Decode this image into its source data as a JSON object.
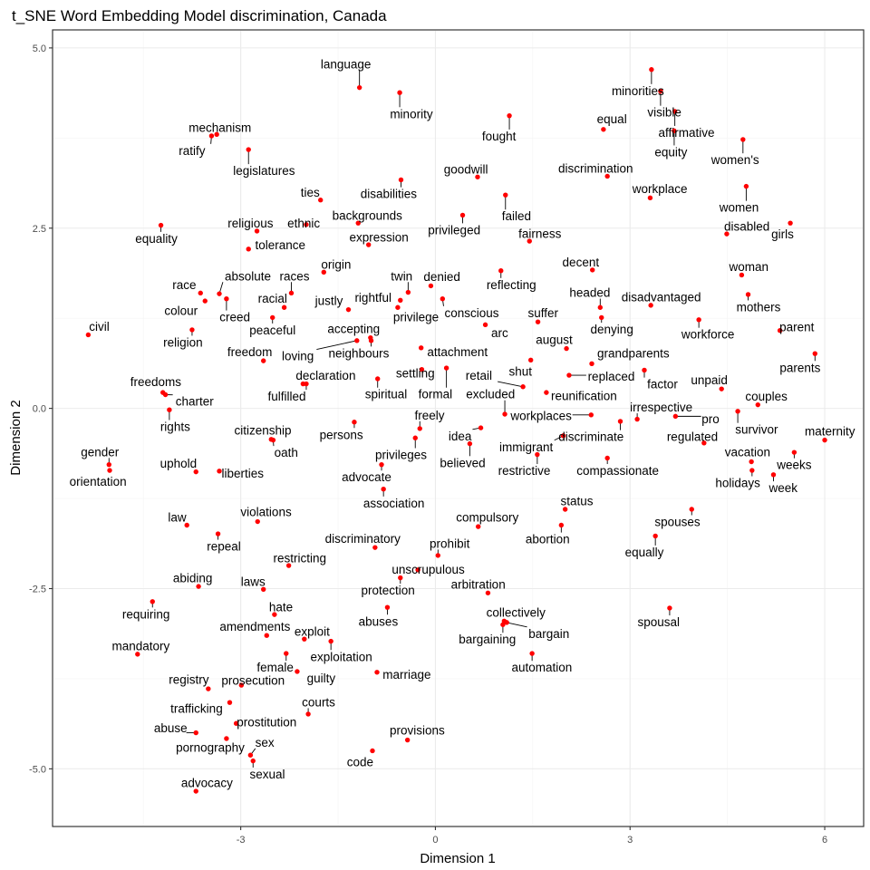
{
  "chart_data": {
    "type": "scatter",
    "title": "t_SNE Word Embedding Model discrimination, Canada",
    "xlabel": "Dimension 1",
    "ylabel": "Dimension 2",
    "xlim": [
      -5.9,
      6.6
    ],
    "ylim": [
      -5.8,
      5.25
    ],
    "xticks": [
      -3,
      0,
      3,
      6
    ],
    "yticks": [
      -5.0,
      -2.5,
      0.0,
      2.5,
      5.0
    ],
    "xtick_labels": [
      "-3",
      "0",
      "3",
      "6"
    ],
    "ytick_labels": [
      "-5.0",
      "-2.5",
      "0.0",
      "2.5",
      "5.0"
    ],
    "grid": true,
    "point_color": "#ff0000",
    "points": [
      {
        "word": "language",
        "x": -1.17,
        "y": 4.45,
        "lx": -1.38,
        "ly": 4.78
      },
      {
        "word": "minority",
        "x": -0.55,
        "y": 4.38,
        "lx": -0.37,
        "ly": 4.09
      },
      {
        "word": "minorities",
        "x": 3.33,
        "y": 4.7,
        "lx": 3.12,
        "ly": 4.41
      },
      {
        "word": "visible",
        "x": 3.47,
        "y": 4.4,
        "lx": 3.53,
        "ly": 4.11
      },
      {
        "word": "fought",
        "x": 1.14,
        "y": 4.06,
        "lx": 0.98,
        "ly": 3.78
      },
      {
        "word": "equal",
        "x": 2.59,
        "y": 3.87,
        "lx": 2.72,
        "ly": 4.02
      },
      {
        "word": "affirmative",
        "x": 3.69,
        "y": 4.12,
        "lx": 3.87,
        "ly": 3.83
      },
      {
        "word": "equity",
        "x": 3.68,
        "y": 3.85,
        "lx": 3.63,
        "ly": 3.56
      },
      {
        "word": "women's",
        "x": 4.74,
        "y": 3.73,
        "lx": 4.62,
        "ly": 3.45
      },
      {
        "word": "mechanism",
        "x": -3.37,
        "y": 3.8,
        "lx": -3.32,
        "ly": 3.9
      },
      {
        "word": "ratify",
        "x": -3.45,
        "y": 3.78,
        "lx": -3.75,
        "ly": 3.58
      },
      {
        "word": "legislatures",
        "x": -2.88,
        "y": 3.59,
        "lx": -2.64,
        "ly": 3.3
      },
      {
        "word": "goodwill",
        "x": 0.65,
        "y": 3.21,
        "lx": 0.47,
        "ly": 3.32
      },
      {
        "word": "discrimination",
        "x": 2.65,
        "y": 3.22,
        "lx": 2.47,
        "ly": 3.33
      },
      {
        "word": "workplace",
        "x": 3.31,
        "y": 2.92,
        "lx": 3.46,
        "ly": 3.05
      },
      {
        "word": "women",
        "x": 4.79,
        "y": 3.08,
        "lx": 4.68,
        "ly": 2.79
      },
      {
        "word": "ties",
        "x": -1.77,
        "y": 2.89,
        "lx": -1.93,
        "ly": 3.0
      },
      {
        "word": "disabilities",
        "x": -0.53,
        "y": 3.17,
        "lx": -0.72,
        "ly": 2.98
      },
      {
        "word": "failed",
        "x": 1.08,
        "y": 2.96,
        "lx": 1.25,
        "ly": 2.67
      },
      {
        "word": "backgrounds",
        "x": -1.19,
        "y": 2.57,
        "lx": -1.05,
        "ly": 2.68
      },
      {
        "word": "religious",
        "x": -2.75,
        "y": 2.46,
        "lx": -2.85,
        "ly": 2.57
      },
      {
        "word": "ethnic",
        "x": -1.99,
        "y": 2.55,
        "lx": -2.03,
        "ly": 2.57
      },
      {
        "word": "privileged",
        "x": 0.42,
        "y": 2.68,
        "lx": 0.29,
        "ly": 2.48
      },
      {
        "word": "fairness",
        "x": 1.45,
        "y": 2.32,
        "lx": 1.61,
        "ly": 2.43
      },
      {
        "word": "disabled",
        "x": 4.49,
        "y": 2.42,
        "lx": 4.8,
        "ly": 2.53
      },
      {
        "word": "girls",
        "x": 5.47,
        "y": 2.57,
        "lx": 5.35,
        "ly": 2.42
      },
      {
        "word": "equality",
        "x": -4.23,
        "y": 2.54,
        "lx": -4.3,
        "ly": 2.36
      },
      {
        "word": "expression",
        "x": -1.03,
        "y": 2.27,
        "lx": -0.87,
        "ly": 2.38
      },
      {
        "word": "tolerance",
        "x": -2.88,
        "y": 2.21,
        "lx": -2.39,
        "ly": 2.27
      },
      {
        "word": "origin",
        "x": -1.72,
        "y": 1.89,
        "lx": -1.53,
        "ly": 2.0
      },
      {
        "word": "reflecting",
        "x": 1.01,
        "y": 1.91,
        "lx": 1.17,
        "ly": 1.72
      },
      {
        "word": "decent",
        "x": 2.42,
        "y": 1.92,
        "lx": 2.24,
        "ly": 2.03
      },
      {
        "word": "woman",
        "x": 4.72,
        "y": 1.85,
        "lx": 4.83,
        "ly": 1.97
      },
      {
        "word": "races",
        "x": -2.22,
        "y": 1.6,
        "lx": -2.17,
        "ly": 1.84
      },
      {
        "word": "absolute",
        "x": -3.33,
        "y": 1.59,
        "lx": -2.89,
        "ly": 1.84
      },
      {
        "word": "race",
        "x": -3.62,
        "y": 1.6,
        "lx": -3.87,
        "ly": 1.72
      },
      {
        "word": "twin",
        "x": -0.42,
        "y": 1.61,
        "lx": -0.52,
        "ly": 1.84
      },
      {
        "word": "denied",
        "x": -0.07,
        "y": 1.7,
        "lx": 0.1,
        "ly": 1.83
      },
      {
        "word": "headed",
        "x": 2.54,
        "y": 1.4,
        "lx": 2.38,
        "ly": 1.61
      },
      {
        "word": "mothers",
        "x": 4.82,
        "y": 1.58,
        "lx": 4.98,
        "ly": 1.41
      },
      {
        "word": "racial",
        "x": -2.33,
        "y": 1.4,
        "lx": -2.51,
        "ly": 1.53
      },
      {
        "word": "justly",
        "x": -1.34,
        "y": 1.37,
        "lx": -1.64,
        "ly": 1.5
      },
      {
        "word": "rightful",
        "x": -0.54,
        "y": 1.5,
        "lx": -0.96,
        "ly": 1.54
      },
      {
        "word": "conscious",
        "x": 0.11,
        "y": 1.52,
        "lx": 0.56,
        "ly": 1.33
      },
      {
        "word": "disadvantaged",
        "x": 3.32,
        "y": 1.43,
        "lx": 3.48,
        "ly": 1.55
      },
      {
        "word": "colour",
        "x": -3.55,
        "y": 1.49,
        "lx": -3.92,
        "ly": 1.36
      },
      {
        "word": "creed",
        "x": -3.22,
        "y": 1.52,
        "lx": -3.09,
        "ly": 1.27
      },
      {
        "word": "peaceful",
        "x": -2.51,
        "y": 1.26,
        "lx": -2.51,
        "ly": 1.09
      },
      {
        "word": "privilege",
        "x": -0.58,
        "y": 1.4,
        "lx": -0.3,
        "ly": 1.27
      },
      {
        "word": "suffer",
        "x": 1.58,
        "y": 1.2,
        "lx": 1.66,
        "ly": 1.33
      },
      {
        "word": "denying",
        "x": 2.56,
        "y": 1.26,
        "lx": 2.72,
        "ly": 1.1
      },
      {
        "word": "civil",
        "x": -5.35,
        "y": 1.02,
        "lx": -5.18,
        "ly": 1.14
      },
      {
        "word": "religion",
        "x": -3.75,
        "y": 1.09,
        "lx": -3.89,
        "ly": 0.92
      },
      {
        "word": "accepting",
        "x": -1.0,
        "y": 0.98,
        "lx": -1.26,
        "ly": 1.11
      },
      {
        "word": "arc",
        "x": 0.77,
        "y": 1.16,
        "lx": 0.99,
        "ly": 1.05
      },
      {
        "word": "workforce",
        "x": 4.06,
        "y": 1.23,
        "lx": 4.2,
        "ly": 1.03
      },
      {
        "word": "parent",
        "x": 5.31,
        "y": 1.08,
        "lx": 5.57,
        "ly": 1.13
      },
      {
        "word": "august",
        "x": 2.02,
        "y": 0.83,
        "lx": 1.83,
        "ly": 0.96
      },
      {
        "word": "loving",
        "x": -1.21,
        "y": 0.94,
        "lx": -2.12,
        "ly": 0.73
      },
      {
        "word": "neighbours",
        "x": -0.99,
        "y": 0.94,
        "lx": -1.18,
        "ly": 0.77
      },
      {
        "word": "freedom",
        "x": -2.65,
        "y": 0.66,
        "lx": -2.86,
        "ly": 0.79
      },
      {
        "word": "attachment",
        "x": -0.22,
        "y": 0.84,
        "lx": 0.34,
        "ly": 0.79
      },
      {
        "word": "grandparents",
        "x": 2.41,
        "y": 0.62,
        "lx": 3.05,
        "ly": 0.77
      },
      {
        "word": "parents",
        "x": 5.85,
        "y": 0.76,
        "lx": 5.62,
        "ly": 0.57
      },
      {
        "word": "shut",
        "x": 1.47,
        "y": 0.67,
        "lx": 1.31,
        "ly": 0.52
      },
      {
        "word": "settling",
        "x": -0.21,
        "y": 0.54,
        "lx": -0.31,
        "ly": 0.49
      },
      {
        "word": "declaration",
        "x": -2.04,
        "y": 0.34,
        "lx": -1.69,
        "ly": 0.46
      },
      {
        "word": "retail",
        "x": 1.35,
        "y": 0.3,
        "lx": 0.67,
        "ly": 0.46
      },
      {
        "word": "replaced",
        "x": 2.06,
        "y": 0.46,
        "lx": 2.71,
        "ly": 0.45
      },
      {
        "word": "factor",
        "x": 3.22,
        "y": 0.53,
        "lx": 3.5,
        "ly": 0.34
      },
      {
        "word": "unpaid",
        "x": 4.41,
        "y": 0.27,
        "lx": 4.22,
        "ly": 0.4
      },
      {
        "word": "freedoms",
        "x": -4.2,
        "y": 0.22,
        "lx": -4.31,
        "ly": 0.37
      },
      {
        "word": "fulfilled",
        "x": -1.99,
        "y": 0.34,
        "lx": -2.29,
        "ly": 0.17
      },
      {
        "word": "spiritual",
        "x": -0.89,
        "y": 0.41,
        "lx": -0.76,
        "ly": 0.2
      },
      {
        "word": "formal",
        "x": 0.17,
        "y": 0.56,
        "lx": 0.0,
        "ly": 0.2
      },
      {
        "word": "excluded",
        "x": 1.07,
        "y": -0.08,
        "lx": 0.85,
        "ly": 0.2
      },
      {
        "word": "reunification",
        "x": 1.71,
        "y": 0.22,
        "lx": 2.29,
        "ly": 0.18
      },
      {
        "word": "couples",
        "x": 4.97,
        "y": 0.05,
        "lx": 5.1,
        "ly": 0.17
      },
      {
        "word": "charter",
        "x": -4.16,
        "y": 0.19,
        "lx": -3.71,
        "ly": 0.1
      },
      {
        "word": "irrespective",
        "x": 3.11,
        "y": -0.15,
        "lx": 3.48,
        "ly": 0.02
      },
      {
        "word": "rights",
        "x": -4.1,
        "y": -0.02,
        "lx": -4.01,
        "ly": -0.25
      },
      {
        "word": "freely",
        "x": -0.24,
        "y": -0.28,
        "lx": -0.09,
        "ly": -0.09
      },
      {
        "word": "workplaces",
        "x": 2.4,
        "y": -0.09,
        "lx": 1.63,
        "ly": -0.1
      },
      {
        "word": "pro",
        "x": 3.7,
        "y": -0.11,
        "lx": 4.24,
        "ly": -0.14
      },
      {
        "word": "survivor",
        "x": 4.66,
        "y": -0.04,
        "lx": 4.95,
        "ly": -0.29
      },
      {
        "word": "maternity",
        "x": 6.0,
        "y": -0.44,
        "lx": 6.08,
        "ly": -0.31
      },
      {
        "word": "citizenship",
        "x": -2.53,
        "y": -0.43,
        "lx": -2.66,
        "ly": -0.3
      },
      {
        "word": "persons",
        "x": -1.25,
        "y": -0.19,
        "lx": -1.45,
        "ly": -0.36
      },
      {
        "word": "idea",
        "x": 0.7,
        "y": -0.27,
        "lx": 0.38,
        "ly": -0.38
      },
      {
        "word": "discriminate",
        "x": 2.85,
        "y": -0.18,
        "lx": 2.4,
        "ly": -0.39
      },
      {
        "word": "regulated",
        "x": 4.14,
        "y": -0.48,
        "lx": 3.96,
        "ly": -0.39
      },
      {
        "word": "immigrant",
        "x": 1.97,
        "y": -0.38,
        "lx": 1.4,
        "ly": -0.53
      },
      {
        "word": "privileges",
        "x": -0.31,
        "y": -0.41,
        "lx": -0.53,
        "ly": -0.64
      },
      {
        "word": "gender",
        "x": -5.03,
        "y": -0.78,
        "lx": -5.17,
        "ly": -0.6
      },
      {
        "word": "oath",
        "x": -2.5,
        "y": -0.44,
        "lx": -2.3,
        "ly": -0.61
      },
      {
        "word": "vacation",
        "x": 4.87,
        "y": -0.74,
        "lx": 4.81,
        "ly": -0.6
      },
      {
        "word": "uphold",
        "x": -3.69,
        "y": -0.88,
        "lx": -3.96,
        "ly": -0.76
      },
      {
        "word": "believed",
        "x": 0.53,
        "y": -0.49,
        "lx": 0.42,
        "ly": -0.75
      },
      {
        "word": "weeks",
        "x": 5.53,
        "y": -0.61,
        "lx": 5.53,
        "ly": -0.78
      },
      {
        "word": "orientation",
        "x": -5.02,
        "y": -0.86,
        "lx": -5.2,
        "ly": -1.01
      },
      {
        "word": "liberties",
        "x": -3.33,
        "y": -0.87,
        "lx": -2.97,
        "ly": -0.9
      },
      {
        "word": "advocate",
        "x": -0.83,
        "y": -0.78,
        "lx": -1.06,
        "ly": -0.95
      },
      {
        "word": "restrictive",
        "x": 1.57,
        "y": -0.64,
        "lx": 1.37,
        "ly": -0.86
      },
      {
        "word": "compassionate",
        "x": 2.65,
        "y": -0.69,
        "lx": 2.81,
        "ly": -0.86
      },
      {
        "word": "holidays",
        "x": 4.88,
        "y": -0.86,
        "lx": 4.66,
        "ly": -1.03
      },
      {
        "word": "week",
        "x": 5.21,
        "y": -0.92,
        "lx": 5.36,
        "ly": -1.1
      },
      {
        "word": "association",
        "x": -0.8,
        "y": -1.12,
        "lx": -0.64,
        "ly": -1.31
      },
      {
        "word": "status",
        "x": 2.0,
        "y": -1.4,
        "lx": 2.18,
        "ly": -1.28
      },
      {
        "word": "violations",
        "x": -2.74,
        "y": -1.57,
        "lx": -2.61,
        "ly": -1.43
      },
      {
        "word": "compulsory",
        "x": 0.66,
        "y": -1.64,
        "lx": 0.8,
        "ly": -1.51
      },
      {
        "word": "spouses",
        "x": 3.95,
        "y": -1.4,
        "lx": 3.73,
        "ly": -1.57
      },
      {
        "word": "law",
        "x": -3.83,
        "y": -1.62,
        "lx": -3.98,
        "ly": -1.51
      },
      {
        "word": "repeal",
        "x": -3.35,
        "y": -1.74,
        "lx": -3.26,
        "ly": -1.91
      },
      {
        "word": "discriminatory",
        "x": -0.93,
        "y": -1.93,
        "lx": -1.12,
        "ly": -1.8
      },
      {
        "word": "abortion",
        "x": 1.94,
        "y": -1.62,
        "lx": 1.73,
        "ly": -1.81
      },
      {
        "word": "prohibit",
        "x": 0.04,
        "y": -2.04,
        "lx": 0.22,
        "ly": -1.87
      },
      {
        "word": "equally",
        "x": 3.39,
        "y": -1.77,
        "lx": 3.22,
        "ly": -1.99
      },
      {
        "word": "restricting",
        "x": -2.26,
        "y": -2.18,
        "lx": -2.09,
        "ly": -2.07
      },
      {
        "word": "unscrupulous",
        "x": -0.27,
        "y": -2.24,
        "lx": -0.11,
        "ly": -2.23
      },
      {
        "word": "abiding",
        "x": -3.65,
        "y": -2.47,
        "lx": -3.74,
        "ly": -2.35
      },
      {
        "word": "laws",
        "x": -2.65,
        "y": -2.51,
        "lx": -2.81,
        "ly": -2.4
      },
      {
        "word": "protection",
        "x": -0.54,
        "y": -2.35,
        "lx": -0.73,
        "ly": -2.52
      },
      {
        "word": "arbitration",
        "x": 0.81,
        "y": -2.56,
        "lx": 0.66,
        "ly": -2.44
      },
      {
        "word": "requiring",
        "x": -4.36,
        "y": -2.68,
        "lx": -4.46,
        "ly": -2.85
      },
      {
        "word": "hate",
        "x": -2.48,
        "y": -2.86,
        "lx": -2.38,
        "ly": -2.75
      },
      {
        "word": "collectively",
        "x": 1.06,
        "y": -2.95,
        "lx": 1.24,
        "ly": -2.83
      },
      {
        "word": "spousal",
        "x": 3.61,
        "y": -2.77,
        "lx": 3.44,
        "ly": -2.96
      },
      {
        "word": "abuses",
        "x": -0.74,
        "y": -2.76,
        "lx": -0.88,
        "ly": -2.95
      },
      {
        "word": "amendments",
        "x": -2.6,
        "y": -3.15,
        "lx": -2.78,
        "ly": -3.02
      },
      {
        "word": "exploit",
        "x": -2.02,
        "y": -3.2,
        "lx": -1.9,
        "ly": -3.09
      },
      {
        "word": "bargaining",
        "x": 1.04,
        "y": -3.0,
        "lx": 0.8,
        "ly": -3.2
      },
      {
        "word": "bargain",
        "x": 1.1,
        "y": -2.97,
        "lx": 1.75,
        "ly": -3.12
      },
      {
        "word": "mandatory",
        "x": -4.59,
        "y": -3.41,
        "lx": -4.54,
        "ly": -3.29
      },
      {
        "word": "exploitation",
        "x": -1.61,
        "y": -3.23,
        "lx": -1.45,
        "ly": -3.44
      },
      {
        "word": "female",
        "x": -2.3,
        "y": -3.4,
        "lx": -2.47,
        "ly": -3.59
      },
      {
        "word": "automation",
        "x": 1.49,
        "y": -3.4,
        "lx": 1.64,
        "ly": -3.59
      },
      {
        "word": "guilty",
        "x": -2.13,
        "y": -3.65,
        "lx": -1.76,
        "ly": -3.74
      },
      {
        "word": "marriage",
        "x": -0.9,
        "y": -3.66,
        "lx": -0.44,
        "ly": -3.69
      },
      {
        "word": "registry",
        "x": -3.5,
        "y": -3.89,
        "lx": -3.8,
        "ly": -3.76
      },
      {
        "word": "prosecution",
        "x": -2.99,
        "y": -3.84,
        "lx": -2.81,
        "ly": -3.77
      },
      {
        "word": "trafficking",
        "x": -3.17,
        "y": -4.08,
        "lx": -3.68,
        "ly": -4.16
      },
      {
        "word": "courts",
        "x": -1.96,
        "y": -4.24,
        "lx": -1.8,
        "ly": -4.07
      },
      {
        "word": "abuse",
        "x": -3.69,
        "y": -4.5,
        "lx": -4.08,
        "ly": -4.43
      },
      {
        "word": "prostitution",
        "x": -3.07,
        "y": -4.37,
        "lx": -2.6,
        "ly": -4.35
      },
      {
        "word": "provisions",
        "x": -0.43,
        "y": -4.6,
        "lx": -0.28,
        "ly": -4.46
      },
      {
        "word": "pornography",
        "x": -3.22,
        "y": -4.58,
        "lx": -3.47,
        "ly": -4.7
      },
      {
        "word": "sex",
        "x": -2.85,
        "y": -4.81,
        "lx": -2.63,
        "ly": -4.63
      },
      {
        "word": "code",
        "x": -0.97,
        "y": -4.75,
        "lx": -1.16,
        "ly": -4.9
      },
      {
        "word": "sexual",
        "x": -2.81,
        "y": -4.89,
        "lx": -2.59,
        "ly": -5.07
      },
      {
        "word": "advocacy",
        "x": -3.69,
        "y": -5.31,
        "lx": -3.52,
        "ly": -5.19
      }
    ]
  }
}
